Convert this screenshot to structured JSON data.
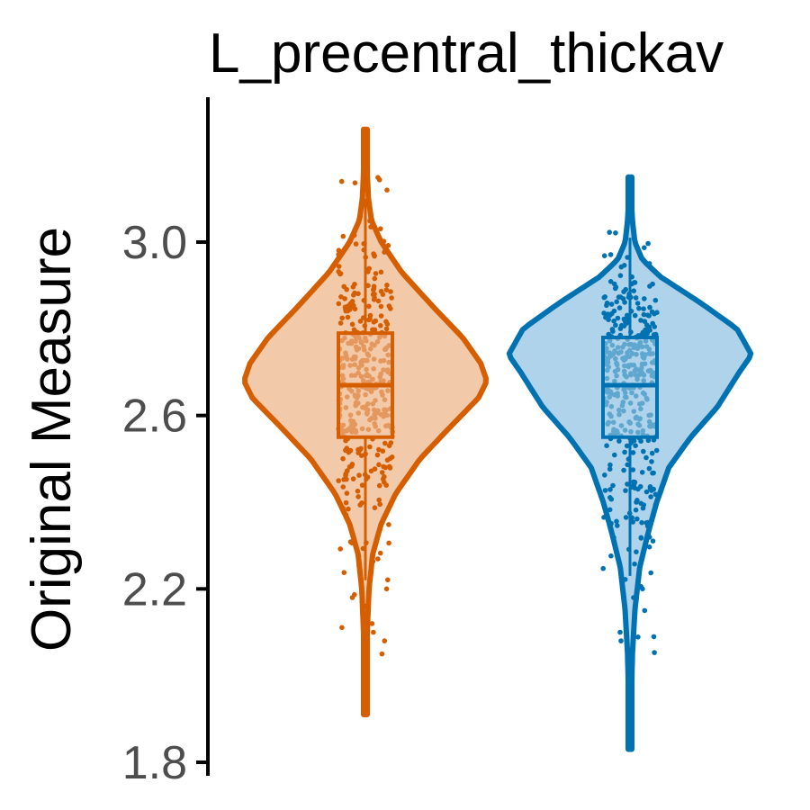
{
  "chart_data": {
    "type": "violin",
    "title": "L_precentral_thickav",
    "xlabel": "",
    "ylabel": "Original Measure",
    "ylim": [
      1.8,
      3.3
    ],
    "y_ticks": [
      "1.8",
      "2.2",
      "2.6",
      "3.0"
    ],
    "y_tick_values": [
      1.8,
      2.2,
      2.6,
      3.0
    ],
    "grid": false,
    "legend": "none",
    "series": [
      {
        "color": "#D55E00",
        "fill": "#F2C9A9",
        "box": {
          "q1": 2.55,
          "median": 2.67,
          "q3": 2.79,
          "whisker_low": 2.22,
          "whisker_high": 3.1
        },
        "range": [
          1.91,
          3.26
        ],
        "density": [
          [
            1.91,
            0.005
          ],
          [
            2.0,
            0.01
          ],
          [
            2.1,
            0.015
          ],
          [
            2.2,
            0.03
          ],
          [
            2.28,
            0.06
          ],
          [
            2.35,
            0.13
          ],
          [
            2.42,
            0.25
          ],
          [
            2.5,
            0.45
          ],
          [
            2.58,
            0.72
          ],
          [
            2.64,
            0.93
          ],
          [
            2.68,
            1.0
          ],
          [
            2.72,
            0.95
          ],
          [
            2.78,
            0.8
          ],
          [
            2.85,
            0.56
          ],
          [
            2.93,
            0.3
          ],
          [
            3.0,
            0.13
          ],
          [
            3.05,
            0.05
          ],
          [
            3.1,
            0.025
          ],
          [
            3.18,
            0.012
          ],
          [
            3.26,
            0.005
          ]
        ],
        "outliers": [
          2.05,
          2.08,
          2.1,
          2.12,
          2.16,
          2.18,
          2.2,
          3.12,
          3.14
        ]
      },
      {
        "color": "#0072B2",
        "fill": "#AED3EA",
        "box": {
          "q1": 2.55,
          "median": 2.67,
          "q3": 2.78,
          "whisker_low": 2.23,
          "whisker_high": 3.01
        },
        "range": [
          1.83,
          3.15
        ],
        "density": [
          [
            1.83,
            0.005
          ],
          [
            1.95,
            0.012
          ],
          [
            2.05,
            0.02
          ],
          [
            2.15,
            0.04
          ],
          [
            2.25,
            0.08
          ],
          [
            2.33,
            0.15
          ],
          [
            2.4,
            0.22
          ],
          [
            2.48,
            0.32
          ],
          [
            2.55,
            0.5
          ],
          [
            2.62,
            0.72
          ],
          [
            2.7,
            0.9
          ],
          [
            2.74,
            1.0
          ],
          [
            2.8,
            0.88
          ],
          [
            2.86,
            0.58
          ],
          [
            2.92,
            0.25
          ],
          [
            2.96,
            0.1
          ],
          [
            3.0,
            0.04
          ],
          [
            3.05,
            0.02
          ],
          [
            3.1,
            0.01
          ],
          [
            3.15,
            0.004
          ]
        ],
        "outliers": [
          1.97,
          2.08,
          2.1,
          2.15,
          2.18,
          2.2
        ]
      }
    ]
  }
}
